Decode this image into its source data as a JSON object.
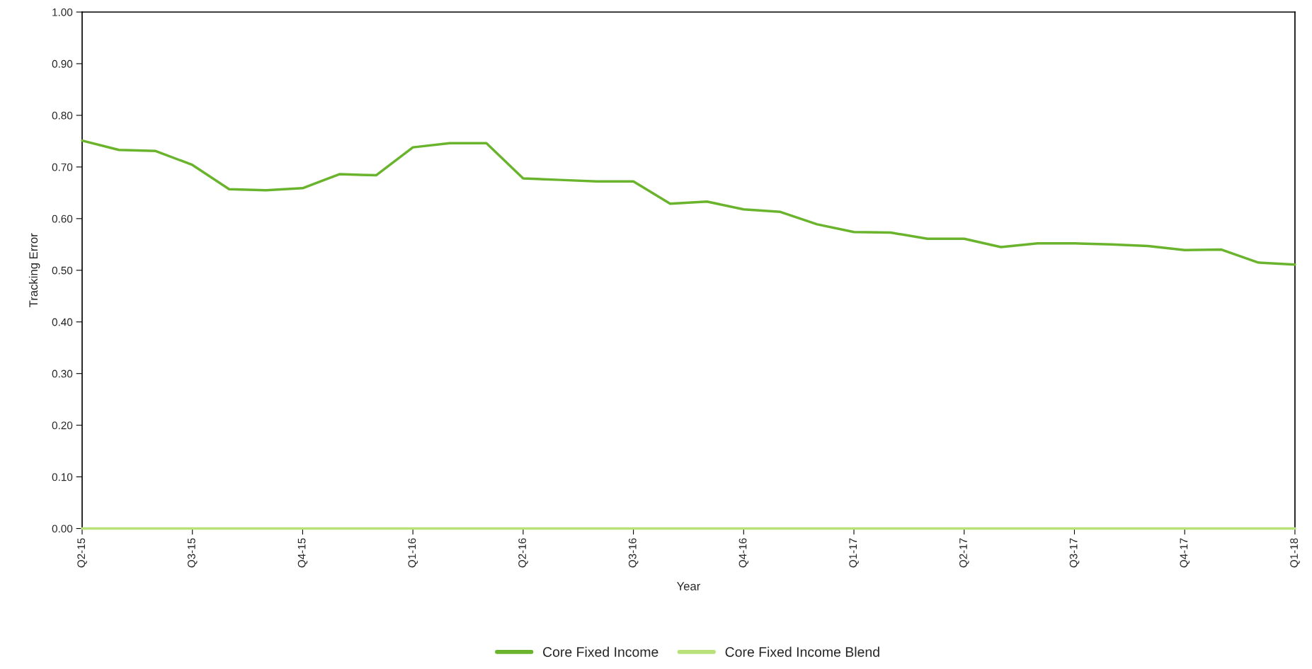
{
  "chart_data": {
    "type": "line",
    "xlabel": "Year",
    "ylabel": "Tracking Error",
    "categories": [
      "Q2-15",
      null,
      null,
      "Q3-15",
      null,
      null,
      "Q4-15",
      null,
      null,
      "Q1-16",
      null,
      null,
      "Q2-16",
      null,
      null,
      "Q3-16",
      null,
      null,
      "Q4-16",
      null,
      null,
      "Q1-17",
      null,
      null,
      "Q2-17",
      null,
      null,
      "Q3-17",
      null,
      null,
      "Q4-17",
      null,
      null,
      "Q1-18"
    ],
    "series": [
      {
        "name": "Core Fixed Income",
        "color": "#6ab42d",
        "values": [
          0.751,
          0.733,
          0.731,
          0.704,
          0.657,
          0.655,
          0.659,
          0.686,
          0.684,
          0.738,
          0.746,
          0.746,
          0.678,
          0.675,
          0.672,
          0.672,
          0.629,
          0.633,
          0.618,
          0.613,
          0.589,
          0.574,
          0.573,
          0.561,
          0.561,
          0.545,
          0.552,
          0.552,
          0.55,
          0.547,
          0.539,
          0.54,
          0.515,
          0.511
        ]
      },
      {
        "name": "Core Fixed Income Blend",
        "color": "#b8e17a",
        "values": [
          0,
          0,
          0,
          0,
          0,
          0,
          0,
          0,
          0,
          0,
          0,
          0,
          0,
          0,
          0,
          0,
          0,
          0,
          0,
          0,
          0,
          0,
          0,
          0,
          0,
          0,
          0,
          0,
          0,
          0,
          0,
          0,
          0,
          0
        ]
      }
    ],
    "ylim": [
      0,
      1
    ],
    "yticks": [
      {
        "value": 0,
        "label": "0.00"
      },
      {
        "value": 0.1,
        "label": "0.10"
      },
      {
        "value": 0.2,
        "label": "0.20"
      },
      {
        "value": 0.3,
        "label": "0.30"
      },
      {
        "value": 0.4,
        "label": "0.40"
      },
      {
        "value": 0.5,
        "label": "0.50"
      },
      {
        "value": 0.6,
        "label": "0.60"
      },
      {
        "value": 0.7,
        "label": "0.70"
      },
      {
        "value": 0.8,
        "label": "0.80"
      },
      {
        "value": 0.9,
        "label": "0.90"
      },
      {
        "value": 1,
        "label": "1.00"
      }
    ],
    "legend": "bottom",
    "marker": "none",
    "line_style": "solid"
  }
}
